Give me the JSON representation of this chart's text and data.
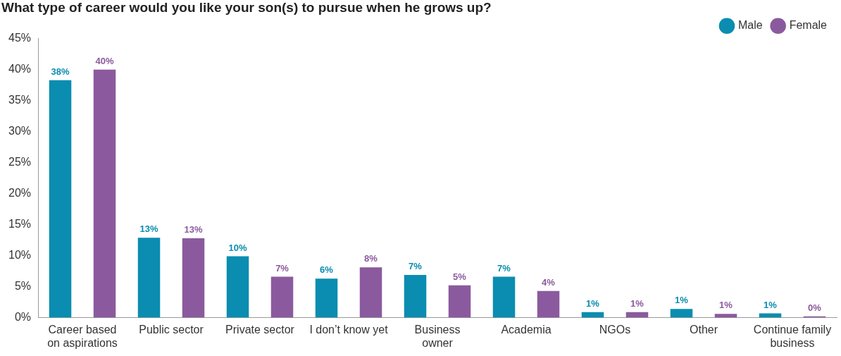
{
  "chart_data": {
    "type": "bar",
    "title": "What type of career would you like your son(s) to pursue when he grows up?",
    "categories": [
      "Career based on aspirations",
      "Public sector",
      "Private sector",
      "I don’t know yet",
      "Business owner",
      "Academia",
      "NGOs",
      "Other",
      "Continue family business"
    ],
    "series": [
      {
        "name": "Male",
        "color": "#0a8db0",
        "values": [
          38.3,
          12.9,
          9.9,
          6.3,
          6.9,
          6.6,
          0.9,
          1.4,
          0.7
        ],
        "value_labels": [
          "38%",
          "13%",
          "10%",
          "6%",
          "7%",
          "7%",
          "1%",
          "1%",
          "1%"
        ]
      },
      {
        "name": "Female",
        "color": "#8b5a9e",
        "values": [
          40.0,
          12.8,
          6.6,
          8.1,
          5.2,
          4.3,
          0.9,
          0.6,
          0.2
        ],
        "value_labels": [
          "40%",
          "13%",
          "7%",
          "8%",
          "5%",
          "4%",
          "1%",
          "1%",
          "0%"
        ]
      }
    ],
    "ylim": [
      0,
      45
    ],
    "yticks": [
      {
        "value": 0,
        "label": "0%"
      },
      {
        "value": 5,
        "label": "5%"
      },
      {
        "value": 10,
        "label": "10%"
      },
      {
        "value": 15,
        "label": "15%"
      },
      {
        "value": 20,
        "label": "20%"
      },
      {
        "value": 25,
        "label": "25%"
      },
      {
        "value": 30,
        "label": "30%"
      },
      {
        "value": 35,
        "label": "35%"
      },
      {
        "value": 40,
        "label": "40%"
      },
      {
        "value": 45,
        "label": "45%"
      }
    ],
    "grid": false,
    "legend": "top right",
    "marker": "circle"
  }
}
